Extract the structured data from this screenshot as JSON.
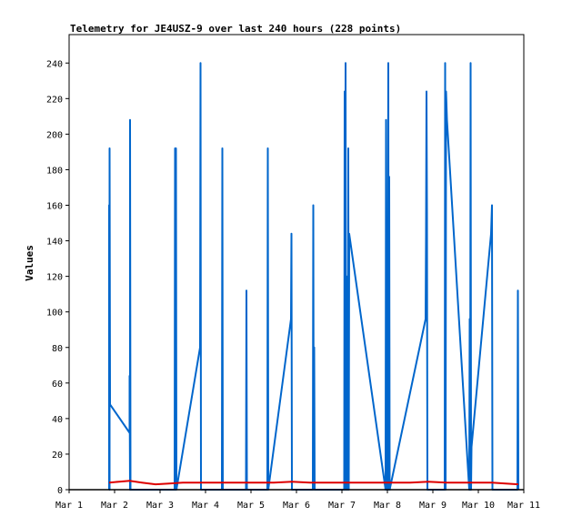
{
  "chart_data": {
    "type": "line",
    "title": "Telemetry for JE4USZ-9 over last 240 hours (228 points)",
    "ylabel": "Values",
    "xlabel": "",
    "x_ticks": [
      "Mar 1",
      "Mar 2",
      "Mar 3",
      "Mar 4",
      "Mar 5",
      "Mar 6",
      "Mar 7",
      "Mar 8",
      "Mar 9",
      "Mar 10",
      "Mar 11"
    ],
    "y_ticks": [
      0,
      20,
      40,
      60,
      80,
      100,
      120,
      140,
      160,
      180,
      200,
      220,
      240
    ],
    "xlim_days": [
      0,
      10
    ],
    "ylim": [
      0,
      256
    ],
    "grid": false,
    "legend": "none",
    "series": [
      {
        "color": "#0066cc",
        "points": [
          [
            0.88,
            0
          ],
          [
            0.88,
            160
          ],
          [
            0.89,
            0
          ],
          [
            0.89,
            192
          ],
          [
            0.9,
            48
          ],
          [
            1.33,
            32
          ],
          [
            1.33,
            64
          ],
          [
            1.34,
            0
          ],
          [
            1.34,
            208
          ],
          [
            1.35,
            0
          ],
          [
            2.32,
            0
          ],
          [
            2.33,
            192
          ],
          [
            2.34,
            0
          ],
          [
            2.35,
            192
          ],
          [
            2.36,
            0
          ],
          [
            2.88,
            80
          ],
          [
            2.89,
            240
          ],
          [
            2.9,
            0
          ],
          [
            3.36,
            0
          ],
          [
            3.37,
            192
          ],
          [
            3.38,
            0
          ],
          [
            3.89,
            0
          ],
          [
            3.9,
            112
          ],
          [
            3.91,
            0
          ],
          [
            4.36,
            0
          ],
          [
            4.37,
            192
          ],
          [
            4.38,
            0
          ],
          [
            4.88,
            96
          ],
          [
            4.89,
            144
          ],
          [
            4.9,
            0
          ],
          [
            5.36,
            0
          ],
          [
            5.37,
            160
          ],
          [
            5.38,
            0
          ],
          [
            5.39,
            80
          ],
          [
            5.4,
            0
          ],
          [
            6.05,
            0
          ],
          [
            6.06,
            224
          ],
          [
            6.07,
            0
          ],
          [
            6.08,
            240
          ],
          [
            6.09,
            0
          ],
          [
            6.1,
            120
          ],
          [
            6.11,
            0
          ],
          [
            6.12,
            72
          ],
          [
            6.13,
            0
          ],
          [
            6.14,
            192
          ],
          [
            6.15,
            0
          ],
          [
            6.16,
            144
          ],
          [
            6.96,
            0
          ],
          [
            6.97,
            208
          ],
          [
            6.98,
            0
          ],
          [
            6.99,
            144
          ],
          [
            7.0,
            0
          ],
          [
            7.02,
            240
          ],
          [
            7.03,
            0
          ],
          [
            7.04,
            176
          ],
          [
            7.05,
            0
          ],
          [
            7.84,
            96
          ],
          [
            7.85,
            144
          ],
          [
            7.86,
            224
          ],
          [
            7.87,
            156
          ],
          [
            7.88,
            0
          ],
          [
            8.26,
            0
          ],
          [
            8.27,
            240
          ],
          [
            8.28,
            0
          ],
          [
            8.29,
            224
          ],
          [
            8.31,
            208
          ],
          [
            8.8,
            0
          ],
          [
            8.81,
            96
          ],
          [
            8.82,
            0
          ],
          [
            8.83,
            240
          ],
          [
            8.84,
            0
          ],
          [
            8.85,
            24
          ],
          [
            9.28,
            144
          ],
          [
            9.3,
            160
          ],
          [
            9.31,
            0
          ],
          [
            9.86,
            0
          ],
          [
            9.87,
            112
          ],
          [
            9.88,
            0
          ]
        ]
      },
      {
        "color": "#dd0000",
        "points": [
          [
            0.88,
            4
          ],
          [
            1.1,
            4.5
          ],
          [
            1.33,
            5
          ],
          [
            1.6,
            4
          ],
          [
            1.9,
            3
          ],
          [
            2.2,
            3.5
          ],
          [
            2.5,
            4
          ],
          [
            3.0,
            4
          ],
          [
            3.5,
            4
          ],
          [
            4.0,
            4
          ],
          [
            4.5,
            4
          ],
          [
            4.9,
            4.5
          ],
          [
            5.3,
            4
          ],
          [
            6.0,
            4
          ],
          [
            6.5,
            4
          ],
          [
            7.0,
            4
          ],
          [
            7.5,
            4
          ],
          [
            7.9,
            4.5
          ],
          [
            8.3,
            4
          ],
          [
            8.8,
            4
          ],
          [
            9.3,
            4
          ],
          [
            9.6,
            3.5
          ],
          [
            9.88,
            3
          ]
        ]
      },
      {
        "color": "#000000",
        "points": [
          [
            0,
            0
          ],
          [
            10,
            0
          ]
        ]
      }
    ]
  }
}
